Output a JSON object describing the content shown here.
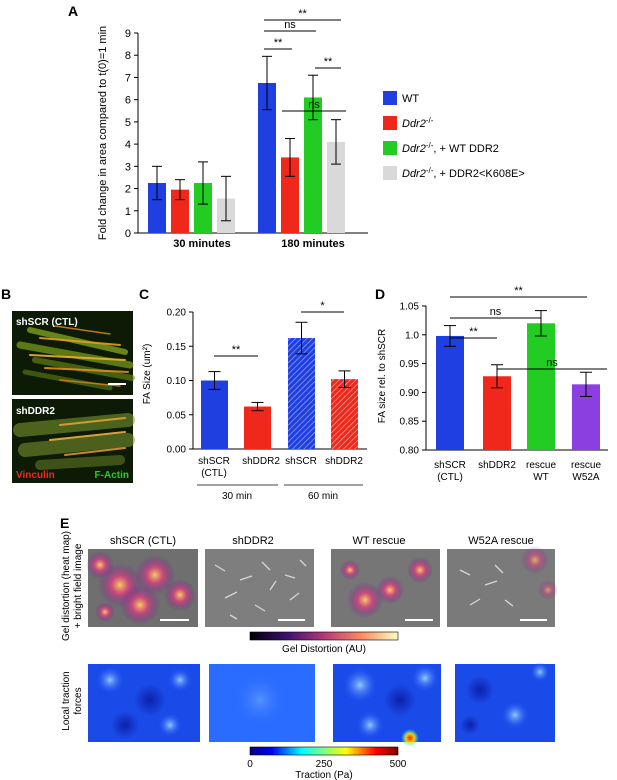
{
  "colors": {
    "wt": "#1f3fe0",
    "ko": "#f0281c",
    "rescue": "#22cc22",
    "mutant": "#d9d9d9",
    "w52a": "#8b3fe0"
  },
  "panel_labels": {
    "a": "A",
    "b": "B",
    "c": "C",
    "d": "D",
    "e": "E"
  },
  "chart_data": [
    {
      "id": "A",
      "type": "bar",
      "ylabel": "Fold change in area compared to t(0)=1 min",
      "ylim": [
        0,
        9
      ],
      "yticks": [
        0,
        1,
        2,
        3,
        4,
        5,
        6,
        7,
        8,
        9
      ],
      "categories": [
        "30 minutes",
        "180 minutes"
      ],
      "series": [
        {
          "name": "WT",
          "color": "#1f3fe0",
          "values": [
            2.25,
            6.75
          ],
          "errors": [
            0.75,
            1.2
          ]
        },
        {
          "name": "Ddr2-/-",
          "color": "#f0281c",
          "values": [
            1.95,
            3.4
          ],
          "errors": [
            0.45,
            0.85
          ]
        },
        {
          "name": "Ddr2-/-, + WT DDR2",
          "color": "#22cc22",
          "values": [
            2.25,
            6.1
          ],
          "errors": [
            0.95,
            1.0
          ]
        },
        {
          "name": "Ddr2-/-, + DDR2<K608E>",
          "color": "#d9d9d9",
          "values": [
            1.55,
            4.1
          ],
          "errors": [
            1.0,
            1.0
          ]
        }
      ],
      "legend": [
        {
          "prefix": "WT",
          "suffix": "",
          "color": "#1f3fe0"
        },
        {
          "prefix": "Ddr2",
          "sup": "-/-",
          "suffix": "",
          "color": "#f0281c"
        },
        {
          "prefix": "Ddr2",
          "sup": "-/-",
          "suffix": ", + WT DDR2",
          "color": "#22cc22"
        },
        {
          "prefix": "Ddr2",
          "sup": "-/-",
          "suffix": ", + DDR2<K608E>",
          "color": "#d9d9d9"
        }
      ],
      "significance": [
        "**",
        "ns",
        "**",
        "ns",
        "**"
      ]
    },
    {
      "id": "C",
      "type": "bar",
      "ylabel": "FA Size (um²)",
      "ylim": [
        0,
        0.2
      ],
      "yticks": [
        "0.00",
        "0.05",
        "0.10",
        "0.15",
        "0.20"
      ],
      "categories": [
        "shSCR (CTL)",
        "shDDR2",
        "shSCR",
        "shDDR2"
      ],
      "values": [
        0.1,
        0.062,
        0.162,
        0.102
      ],
      "errors": [
        0.013,
        0.006,
        0.023,
        0.012
      ],
      "hatched": [
        false,
        false,
        true,
        true
      ],
      "colors": [
        "#1f3fe0",
        "#f0281c",
        "#1f3fe0",
        "#f0281c"
      ],
      "groups": [
        "30 min",
        "60 min"
      ],
      "significance": [
        "**",
        "*"
      ]
    },
    {
      "id": "D",
      "type": "bar",
      "ylabel": "FA size rel. to shSCR",
      "ylim": [
        0.8,
        1.05
      ],
      "yticks": [
        "0.80",
        "0.85",
        "0.90",
        "0.95",
        "1.0",
        "1.05"
      ],
      "categories": [
        "shSCR (CTL)",
        "shDDR2",
        "rescue WT",
        "rescue W52A"
      ],
      "values": [
        0.998,
        0.928,
        1.02,
        0.914
      ],
      "errors": [
        0.018,
        0.02,
        0.022,
        0.021
      ],
      "colors": [
        "#1f3fe0",
        "#f0281c",
        "#22cc22",
        "#8b3fe0"
      ],
      "significance": [
        "**",
        "ns",
        "**",
        "ns"
      ]
    }
  ],
  "panel_b": {
    "top_label": "shSCR (CTL)",
    "bottom_label": "shDDR2",
    "stain_red": "Vinculin",
    "stain_green": "F-Actin"
  },
  "panel_e": {
    "columns": [
      "shSCR (CTL)",
      "shDDR2",
      "WT rescue",
      "W52A rescue"
    ],
    "row1_label": "Gel distortion (heat map) + bright field image",
    "row2_label": "Local traction forces",
    "distortion_bar_label": "Gel Distortion (AU)",
    "traction_bar_label": "Traction (Pa)",
    "traction_ticks": [
      "0",
      "250",
      "500"
    ]
  }
}
